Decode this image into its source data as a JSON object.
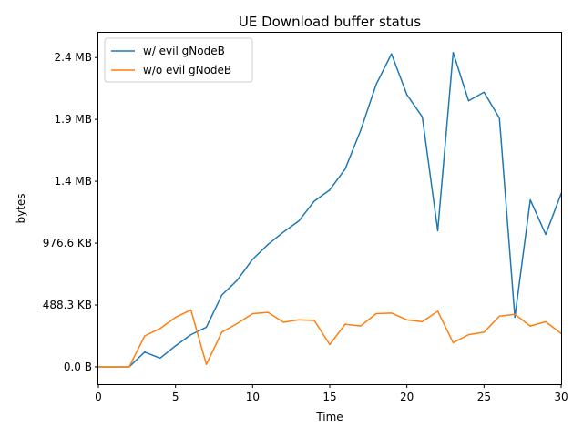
{
  "chart_data": {
    "type": "line",
    "title": "UE Download buffer status",
    "xlabel": "Time",
    "ylabel": "bytes",
    "xlim": [
      0,
      30
    ],
    "ylim_bytes": [
      -140000,
      2700000
    ],
    "grid": false,
    "legend_position": "top-left",
    "x_ticks": [
      0,
      5,
      10,
      15,
      20,
      25,
      30
    ],
    "y_ticks": [
      {
        "value": 0,
        "label": "0.0 B"
      },
      {
        "value": 500000,
        "label": "488.3 KB"
      },
      {
        "value": 1000000,
        "label": "976.6 KB"
      },
      {
        "value": 1500000,
        "label": "1.4 MB"
      },
      {
        "value": 2000000,
        "label": "1.9 MB"
      },
      {
        "value": 2500000,
        "label": "2.4 MB"
      }
    ],
    "x": [
      0,
      1,
      2,
      3,
      4,
      5,
      6,
      7,
      8,
      9,
      10,
      11,
      12,
      13,
      14,
      15,
      16,
      17,
      18,
      19,
      20,
      21,
      22,
      23,
      24,
      25,
      26,
      27,
      28,
      29,
      30
    ],
    "series": [
      {
        "name": "w/ evil gNodeB",
        "color": "#1f77b4",
        "values": [
          0,
          0,
          0,
          120000,
          70000,
          170000,
          260000,
          320000,
          580000,
          700000,
          870000,
          990000,
          1090000,
          1180000,
          1340000,
          1430000,
          1600000,
          1910000,
          2280000,
          2530000,
          2200000,
          2020000,
          1100000,
          2540000,
          2150000,
          2220000,
          2010000,
          400000,
          1350000,
          1070000,
          1400000
        ]
      },
      {
        "name": "w/o evil gNodeB",
        "color": "#ff7f0e",
        "values": [
          0,
          0,
          0,
          250000,
          310000,
          400000,
          460000,
          20000,
          280000,
          350000,
          430000,
          440000,
          360000,
          380000,
          375000,
          180000,
          345000,
          330000,
          430000,
          435000,
          380000,
          365000,
          450000,
          195000,
          260000,
          280000,
          410000,
          425000,
          330000,
          365000,
          270000
        ]
      }
    ]
  }
}
